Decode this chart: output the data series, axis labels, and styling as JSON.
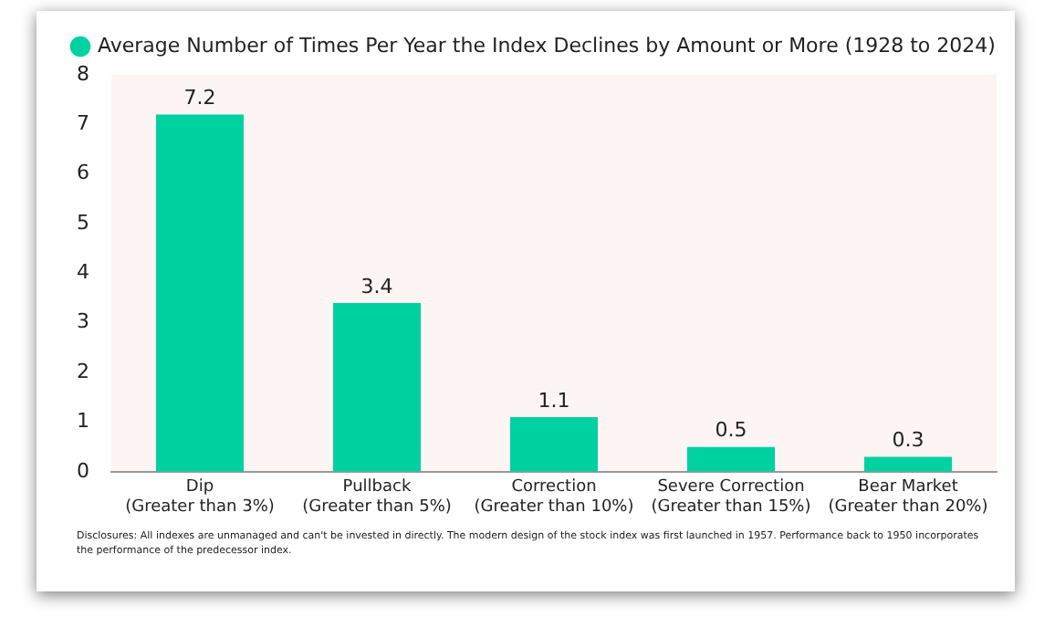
{
  "chart_data": {
    "type": "bar",
    "categories": [
      "Dip\n(Greater than 3%)",
      "Pullback\n(Greater than 5%)",
      "Correction\n(Greater than 10%)",
      "Severe Correction\n(Greater than 15%)",
      "Bear Market\n(Greater than 20%)"
    ],
    "series": [
      {
        "name": "Average Number of Times Per Year the Index Declines by Amount or More (1928 to 2024)",
        "color": "#00d1a0",
        "values": [
          7.2,
          3.4,
          1.1,
          0.5,
          0.3
        ]
      }
    ],
    "ylim": [
      0,
      8
    ],
    "yticks": [
      0,
      1,
      2,
      3,
      4,
      5,
      6,
      7,
      8
    ],
    "grid": false,
    "legend": "top left",
    "data_labels": true,
    "annotations": [
      "Disclosures: All indexes are unmanaged and can't be invested in directly. The modern design of the stock index was first launched in 1957. Performance back to 1950 incorporates the performance of the predecessor index."
    ]
  }
}
